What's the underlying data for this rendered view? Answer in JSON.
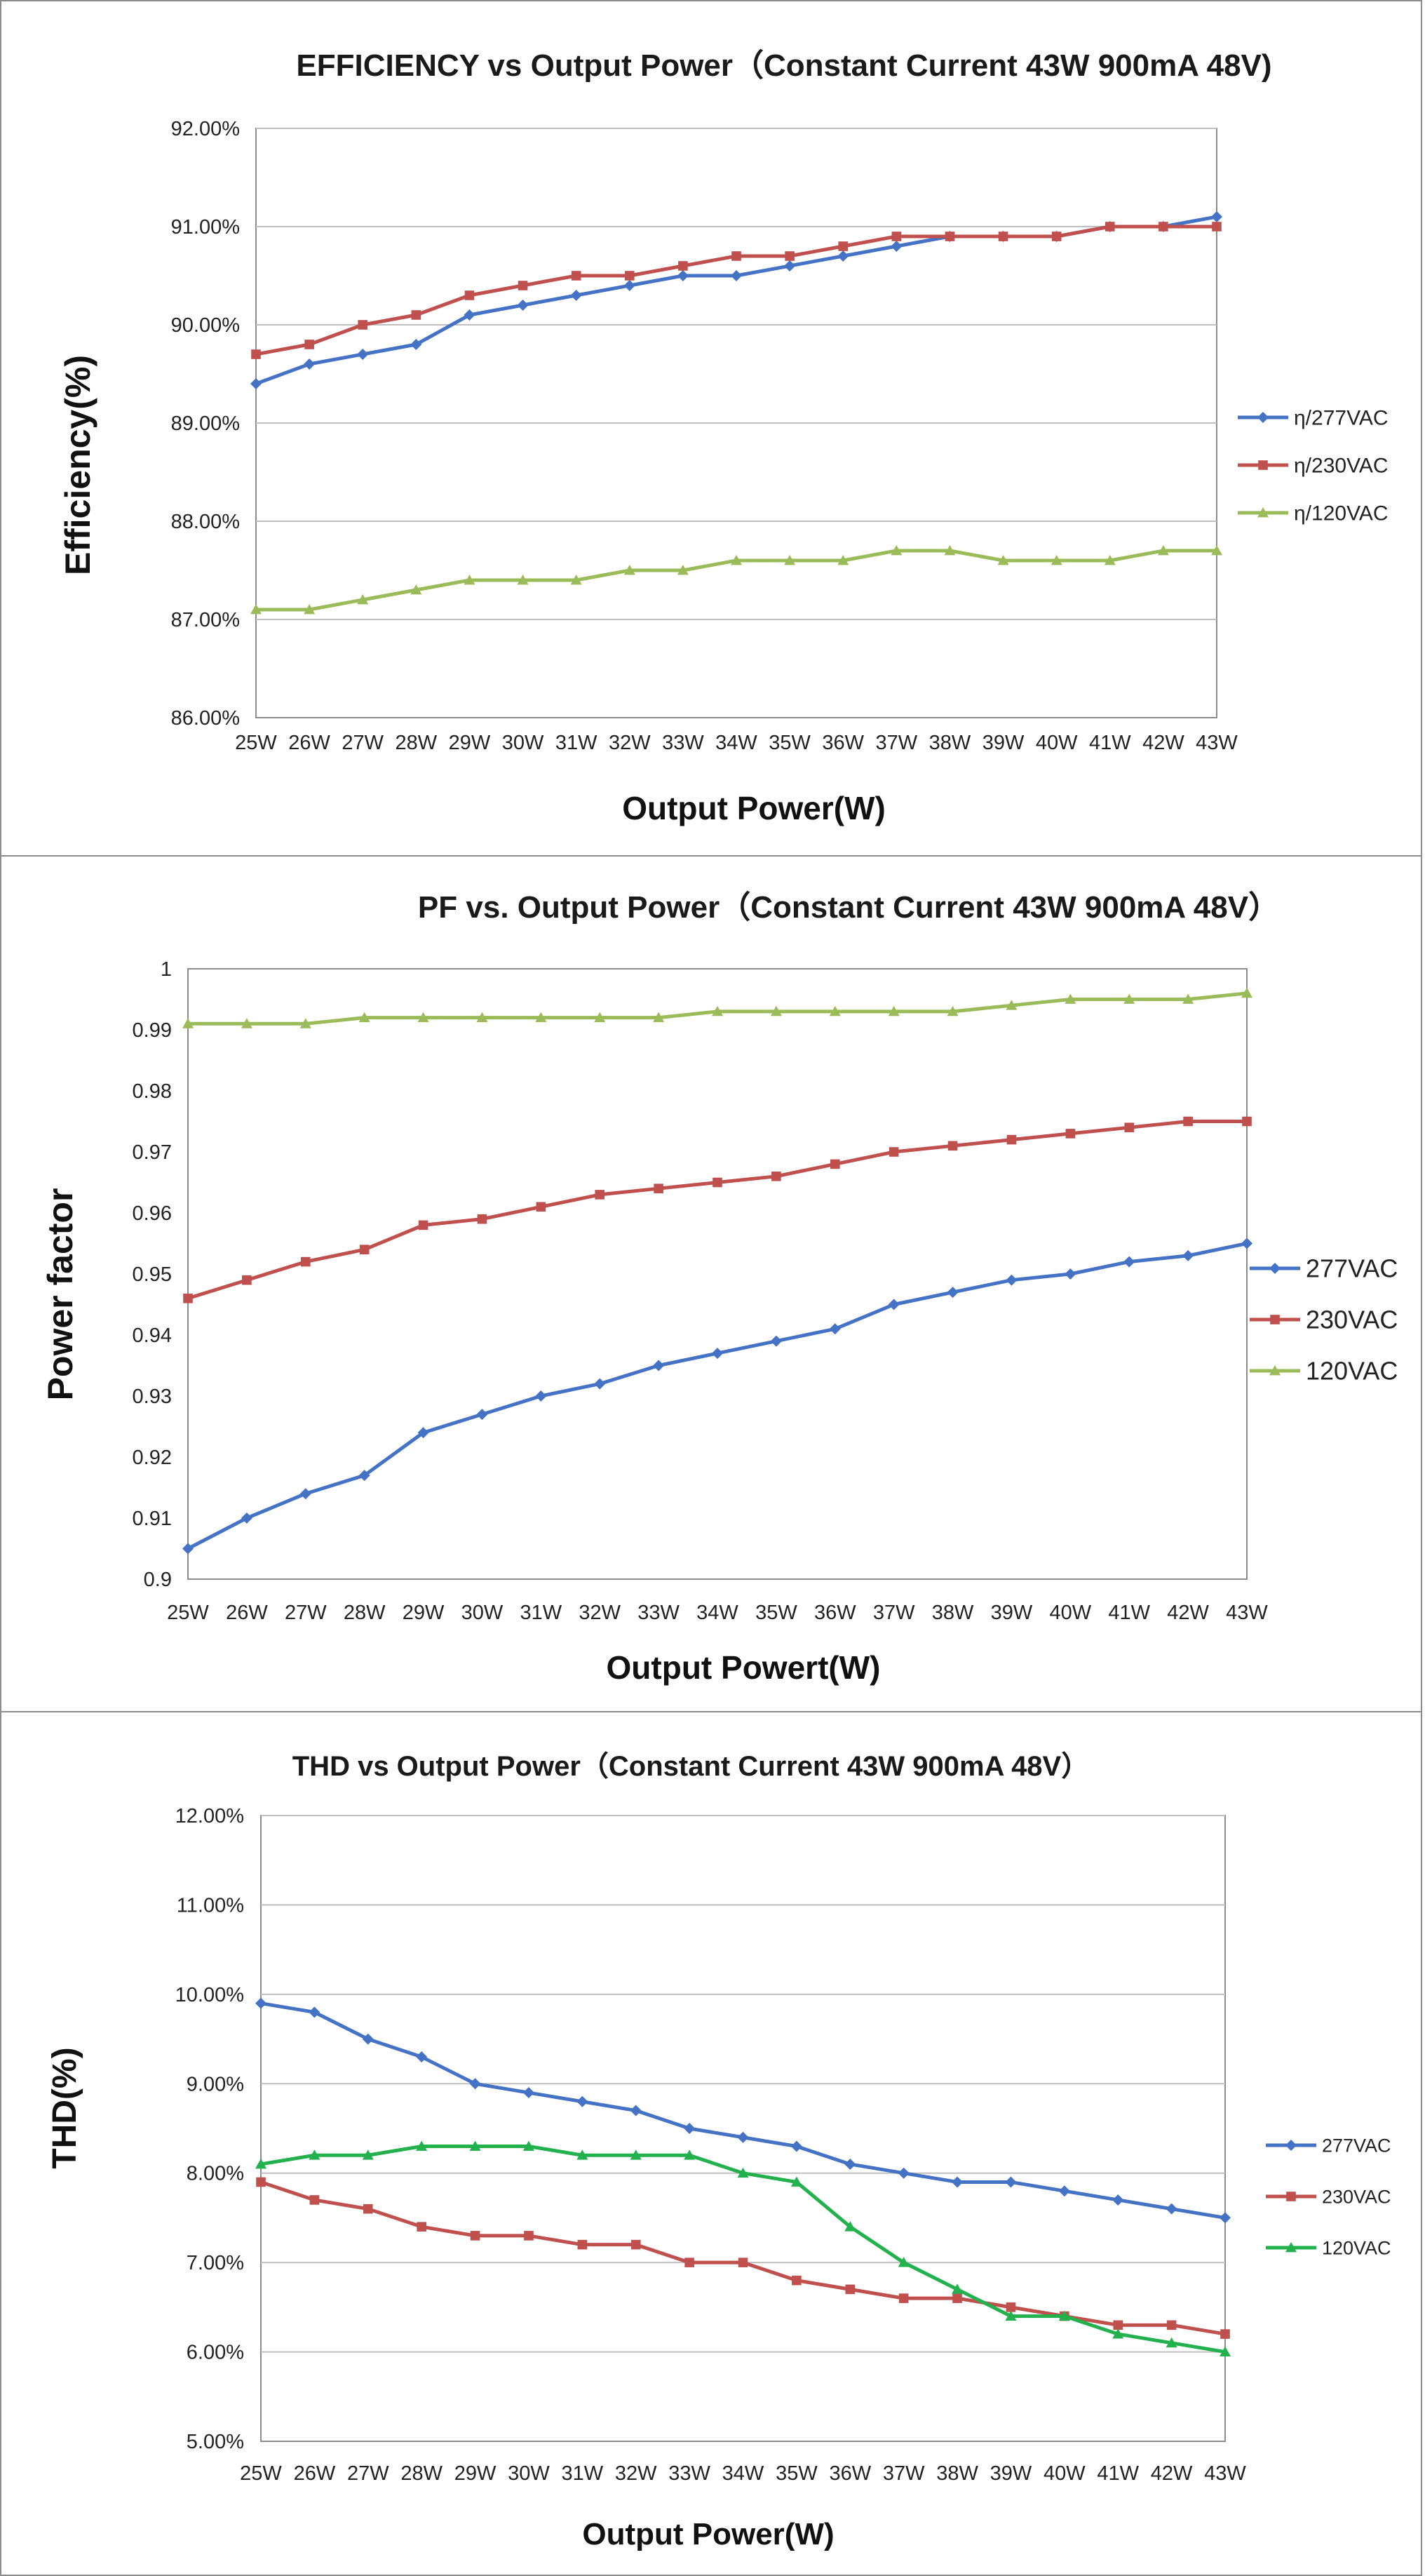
{
  "colors": {
    "series_277": "#4472C4",
    "series_230": "#C0504D",
    "series_120": "#9BBB59",
    "series_120_thd": "#22B14C",
    "grid": "#bfbfbf",
    "plot_border": "#8c8c8c"
  },
  "chart_data": [
    {
      "type": "line",
      "title": "EFFICIENCY vs Output Power（Constant Current 43W 900mA 48V)",
      "xlabel": "Output Power(W)",
      "ylabel": "Efficiency(%)",
      "categories": [
        "25W",
        "26W",
        "27W",
        "28W",
        "29W",
        "30W",
        "31W",
        "32W",
        "33W",
        "34W",
        "35W",
        "36W",
        "37W",
        "38W",
        "39W",
        "40W",
        "41W",
        "42W",
        "43W"
      ],
      "ylim": [
        86.0,
        92.0
      ],
      "yticks": [
        86.0,
        87.0,
        88.0,
        89.0,
        90.0,
        91.0,
        92.0
      ],
      "ytick_labels": [
        "86.00%",
        "87.00%",
        "88.00%",
        "89.00%",
        "90.00%",
        "91.00%",
        "92.00%"
      ],
      "grid": true,
      "legend": "right",
      "series": [
        {
          "name": "η/277VAC",
          "marker": "diamond",
          "color": "#4472C4",
          "values": [
            89.4,
            89.6,
            89.7,
            89.8,
            90.1,
            90.2,
            90.3,
            90.4,
            90.5,
            90.5,
            90.6,
            90.7,
            90.8,
            90.9,
            90.9,
            90.9,
            91.0,
            91.0,
            91.1
          ]
        },
        {
          "name": "η/230VAC",
          "marker": "square",
          "color": "#C0504D",
          "values": [
            89.7,
            89.8,
            90.0,
            90.1,
            90.3,
            90.4,
            90.5,
            90.5,
            90.6,
            90.7,
            90.7,
            90.8,
            90.9,
            90.9,
            90.9,
            90.9,
            91.0,
            91.0,
            91.0
          ]
        },
        {
          "name": "η/120VAC",
          "marker": "triangle",
          "color": "#9BBB59",
          "values": [
            87.1,
            87.1,
            87.2,
            87.3,
            87.4,
            87.4,
            87.4,
            87.5,
            87.5,
            87.6,
            87.6,
            87.6,
            87.7,
            87.7,
            87.6,
            87.6,
            87.6,
            87.7,
            87.7
          ]
        }
      ]
    },
    {
      "type": "line",
      "title": "PF vs. Output Power（Constant Current 43W 900mA 48V）",
      "xlabel": "Output Powert(W)",
      "ylabel": "Power factor",
      "categories": [
        "25W",
        "26W",
        "27W",
        "28W",
        "29W",
        "30W",
        "31W",
        "32W",
        "33W",
        "34W",
        "35W",
        "36W",
        "37W",
        "38W",
        "39W",
        "40W",
        "41W",
        "42W",
        "43W"
      ],
      "ylim": [
        0.9,
        1.0
      ],
      "yticks": [
        0.9,
        0.91,
        0.92,
        0.93,
        0.94,
        0.95,
        0.96,
        0.97,
        0.98,
        0.99,
        1.0
      ],
      "ytick_labels": [
        "0.9",
        "0.91",
        "0.92",
        "0.93",
        "0.94",
        "0.95",
        "0.96",
        "0.97",
        "0.98",
        "0.99",
        "1"
      ],
      "grid": false,
      "legend": "right",
      "series": [
        {
          "name": "277VAC",
          "marker": "diamond",
          "color": "#4472C4",
          "values": [
            0.905,
            0.91,
            0.914,
            0.917,
            0.924,
            0.927,
            0.93,
            0.932,
            0.935,
            0.937,
            0.939,
            0.941,
            0.945,
            0.947,
            0.949,
            0.95,
            0.952,
            0.953,
            0.955
          ]
        },
        {
          "name": "230VAC",
          "marker": "square",
          "color": "#C0504D",
          "values": [
            0.946,
            0.949,
            0.952,
            0.954,
            0.958,
            0.959,
            0.961,
            0.963,
            0.964,
            0.965,
            0.966,
            0.968,
            0.97,
            0.971,
            0.972,
            0.973,
            0.974,
            0.975,
            0.975
          ]
        },
        {
          "name": "120VAC",
          "marker": "triangle",
          "color": "#9BBB59",
          "values": [
            0.991,
            0.991,
            0.991,
            0.992,
            0.992,
            0.992,
            0.992,
            0.992,
            0.992,
            0.993,
            0.993,
            0.993,
            0.993,
            0.993,
            0.994,
            0.995,
            0.995,
            0.995,
            0.996
          ]
        }
      ]
    },
    {
      "type": "line",
      "title": "THD vs Output Power（Constant Current 43W  900mA 48V）",
      "xlabel": "Output Power(W)",
      "ylabel": "THD(%)",
      "categories": [
        "25W",
        "26W",
        "27W",
        "28W",
        "29W",
        "30W",
        "31W",
        "32W",
        "33W",
        "34W",
        "35W",
        "36W",
        "37W",
        "38W",
        "39W",
        "40W",
        "41W",
        "42W",
        "43W"
      ],
      "ylim": [
        5.0,
        12.0
      ],
      "yticks": [
        5.0,
        6.0,
        7.0,
        8.0,
        9.0,
        10.0,
        11.0,
        12.0
      ],
      "ytick_labels": [
        "5.00%",
        "6.00%",
        "7.00%",
        "8.00%",
        "9.00%",
        "10.00%",
        "11.00%",
        "12.00%"
      ],
      "grid": true,
      "legend": "right",
      "series": [
        {
          "name": "277VAC",
          "marker": "diamond",
          "color": "#4472C4",
          "values": [
            9.9,
            9.8,
            9.5,
            9.3,
            9.0,
            8.9,
            8.8,
            8.7,
            8.5,
            8.4,
            8.3,
            8.1,
            8.0,
            7.9,
            7.9,
            7.8,
            7.7,
            7.6,
            7.5
          ]
        },
        {
          "name": "230VAC",
          "marker": "square",
          "color": "#C0504D",
          "values": [
            7.9,
            7.7,
            7.6,
            7.4,
            7.3,
            7.3,
            7.2,
            7.2,
            7.0,
            7.0,
            6.8,
            6.7,
            6.6,
            6.6,
            6.5,
            6.4,
            6.3,
            6.3,
            6.2
          ]
        },
        {
          "name": "120VAC",
          "marker": "triangle",
          "color": "#22B14C",
          "values": [
            8.1,
            8.2,
            8.2,
            8.3,
            8.3,
            8.3,
            8.2,
            8.2,
            8.2,
            8.0,
            7.9,
            7.4,
            7.0,
            6.7,
            6.4,
            6.4,
            6.2,
            6.1,
            6.0
          ]
        }
      ]
    }
  ]
}
